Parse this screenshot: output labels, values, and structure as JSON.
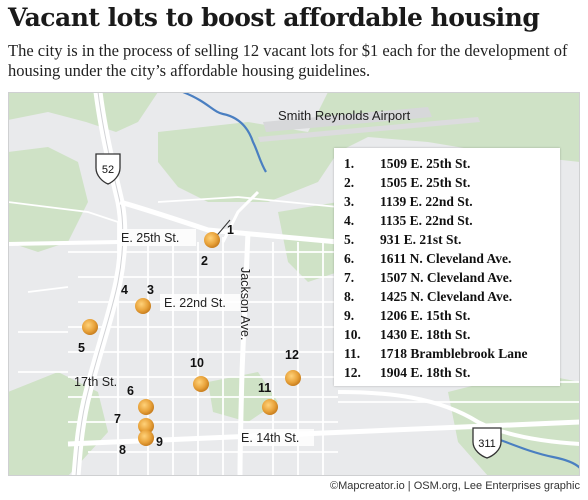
{
  "title": "Vacant lots to boost affordable housing",
  "subtitle": "The city is in the process of selling 12 vacant lots for $1 each for the development of housing under the city’s affordable housing guidelines.",
  "map": {
    "place_labels": {
      "airport": "Smith Reynolds Airport",
      "street_25th": "E. 25th St.",
      "street_22nd": "E. 22nd St.",
      "street_17th": "17th St.",
      "street_14th": "E. 14th St.",
      "street_jackson": "Jackson Ave."
    },
    "shields": {
      "us52": "52",
      "us311": "311"
    },
    "lots": [
      {
        "num": "1",
        "address": "1509 E. 25th St."
      },
      {
        "num": "2",
        "address": "1505 E. 25th St."
      },
      {
        "num": "3",
        "address": "1139 E. 22nd St."
      },
      {
        "num": "4",
        "address": "1135 E. 22nd St."
      },
      {
        "num": "5",
        "address": "931 E. 21st St."
      },
      {
        "num": "6",
        "address": "1611 N. Cleveland Ave."
      },
      {
        "num": "7",
        "address": "1507 N. Cleveland Ave."
      },
      {
        "num": "8",
        "address": "1425 N. Cleveland Ave."
      },
      {
        "num": "9",
        "address": "1206 E. 15th St."
      },
      {
        "num": "10",
        "address": "1430 E. 18th St."
      },
      {
        "num": "11",
        "address": "1718 Bramblebrook Lane"
      },
      {
        "num": "12",
        "address": "1904 E. 18th St."
      }
    ],
    "colors": {
      "marker": "#e8a23a",
      "green": "#cfe2c6",
      "water": "#4a7fc1",
      "road": "#ffffff",
      "land": "#e9eaec"
    }
  },
  "legend": {
    "entries": [
      {
        "num": "1.",
        "address": "1509 E. 25th St."
      },
      {
        "num": "2.",
        "address": "1505 E. 25th St."
      },
      {
        "num": "3.",
        "address": "1139 E. 22nd St."
      },
      {
        "num": "4.",
        "address": "1135 E. 22nd St."
      },
      {
        "num": "5.",
        "address": "931 E. 21st St."
      },
      {
        "num": "6.",
        "address": "1611 N. Cleveland Ave."
      },
      {
        "num": "7.",
        "address": "1507 N. Cleveland Ave."
      },
      {
        "num": "8.",
        "address": "1425 N. Cleveland Ave."
      },
      {
        "num": "9.",
        "address": "1206 E. 15th St."
      },
      {
        "num": "10.",
        "address": "1430 E. 18th St."
      },
      {
        "num": "11.",
        "address": "1718 Bramblebrook Lane"
      },
      {
        "num": "12.",
        "address": "1904 E. 18th St."
      }
    ]
  },
  "credit": "©Mapcreator.io | OSM.org, Lee Enterprises graphic"
}
